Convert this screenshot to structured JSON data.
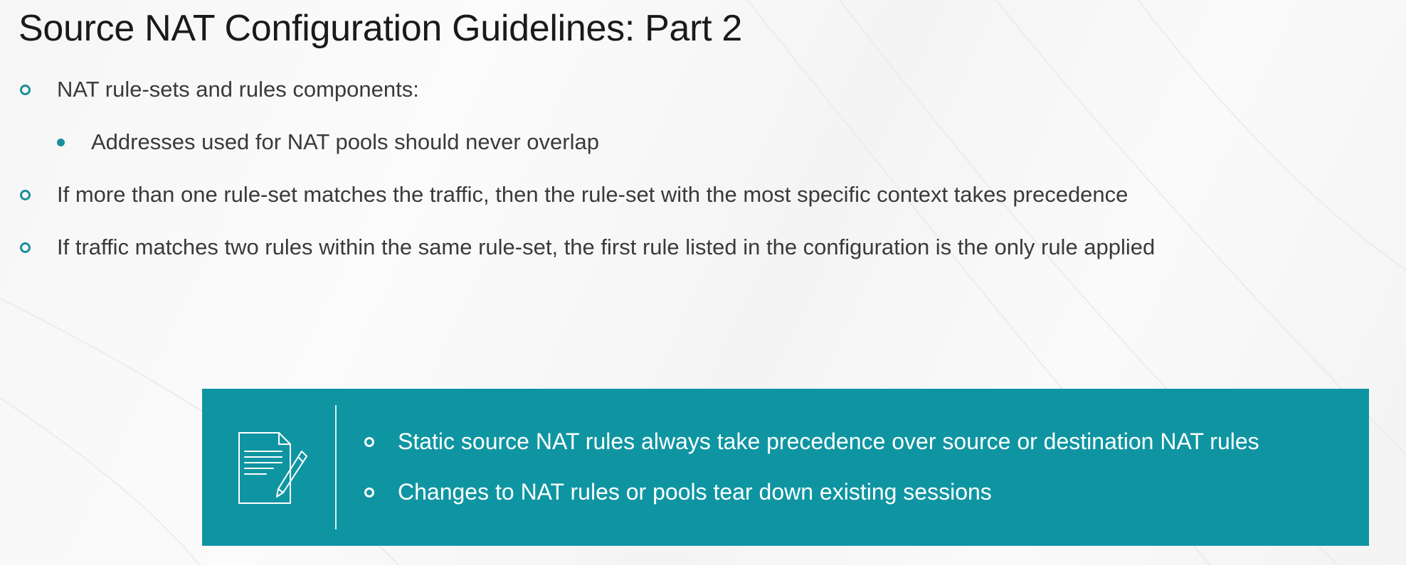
{
  "slide": {
    "title": "Source NAT Configuration Guidelines: Part 2"
  },
  "bullets": [
    {
      "text": "NAT rule-sets and rules components:"
    },
    {
      "text": "Addresses used for NAT pools should never overlap"
    },
    {
      "text": "If more than one rule-set matches the traffic, then the rule-set with the most specific context takes precedence"
    },
    {
      "text": "If traffic matches two rules within the same rule-set, the first rule listed in the configuration is the only rule applied"
    }
  ],
  "note": {
    "icon": "document-pencil-icon",
    "items": [
      {
        "text": "Static source NAT rules always take precedence over source or destination NAT rules"
      },
      {
        "text": "Changes to NAT rules or pools tear down existing sessions"
      }
    ]
  },
  "colors": {
    "accent": "#1b8f9c",
    "note_background": "#0f95a2",
    "note_text": "#ffffff"
  }
}
